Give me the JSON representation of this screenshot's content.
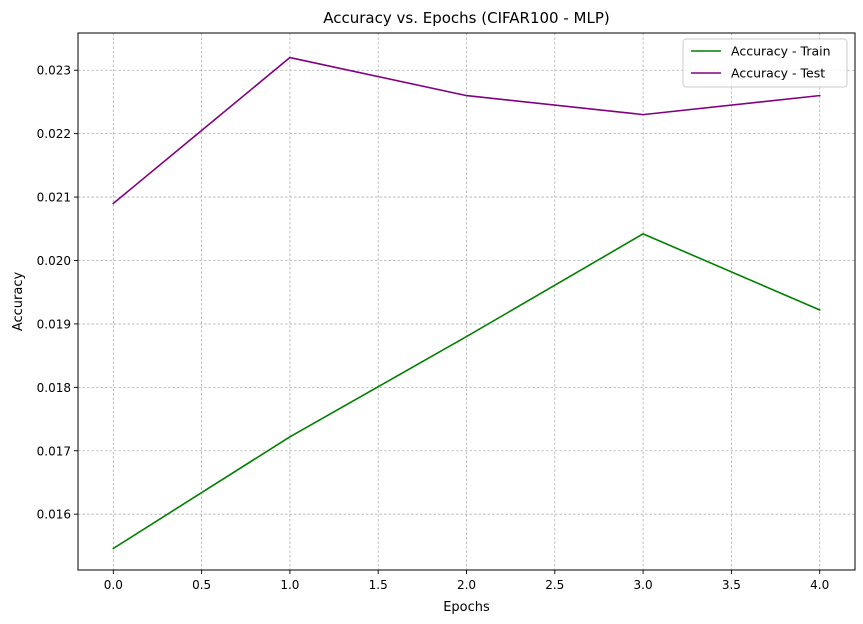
{
  "chart_data": {
    "type": "line",
    "title": "Accuracy vs. Epochs (CIFAR100 - MLP)",
    "xlabel": "Epochs",
    "ylabel": "Accuracy",
    "x": [
      0,
      1,
      2,
      3,
      4
    ],
    "series": [
      {
        "name": "Accuracy - Train",
        "color": "#008000",
        "values": [
          0.01546,
          0.01722,
          0.0188,
          0.02042,
          0.01922
        ]
      },
      {
        "name": "Accuracy - Test",
        "color": "#800080",
        "values": [
          0.0209,
          0.0232,
          0.0226,
          0.0223,
          0.0226
        ]
      }
    ],
    "xlim": [
      -0.2,
      4.2
    ],
    "ylim": [
      0.01512,
      0.023587
    ],
    "xticks": [
      "0.0",
      "0.5",
      "1.0",
      "1.5",
      "2.0",
      "2.5",
      "3.0",
      "3.5",
      "4.0"
    ],
    "yticks": [
      "0.016",
      "0.017",
      "0.018",
      "0.019",
      "0.020",
      "0.021",
      "0.022",
      "0.023"
    ],
    "grid": true,
    "legend": "top-right"
  }
}
